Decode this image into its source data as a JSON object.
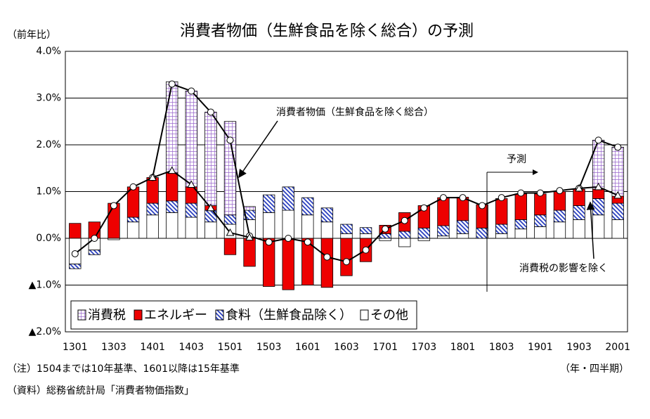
{
  "chart_data": {
    "type": "bar",
    "title": "消費者物価（生鮮食品を除く総合）の予測",
    "y_label": "（前年比）",
    "x_label": "（年・四半期）",
    "notes": [
      "（注）1504までは10年基準、1601以降は15年基準",
      "（資料）総務省統計局「消費者物価指数」"
    ],
    "forecast_label": "予測",
    "categories": [
      "1301",
      null,
      "1303",
      null,
      "1401",
      null,
      "1403",
      null,
      "1501",
      null,
      "1503",
      null,
      "1601",
      null,
      "1603",
      null,
      "1701",
      null,
      "1703",
      null,
      "1801",
      null,
      "1803",
      null,
      "1901",
      null,
      "1903",
      null,
      "2001"
    ],
    "ylim": [
      -2,
      4
    ],
    "yticks": [
      {
        "value": 4,
        "label": "4.0%"
      },
      {
        "value": 3,
        "label": "3.0%"
      },
      {
        "value": 2,
        "label": "2.0%"
      },
      {
        "value": 1,
        "label": "1.0%"
      },
      {
        "value": 0,
        "label": "0.0%"
      },
      {
        "value": -1,
        "label": "▲1.0%"
      },
      {
        "value": -2,
        "label": "▲2.0%"
      }
    ],
    "grid": true,
    "legend": "lower left",
    "series": [
      {
        "name": "消費税",
        "kind": "bar",
        "color": "#9966cc",
        "pattern": "grid",
        "values": [
          0,
          0,
          0,
          0,
          0,
          1.95,
          2.05,
          2.0,
          2.0,
          0.08,
          0,
          0,
          0,
          0,
          0,
          0,
          0,
          0,
          0,
          0,
          0,
          0,
          0,
          0,
          0,
          0,
          0,
          1.05,
          1.05
        ]
      },
      {
        "name": "エネルギー",
        "kind": "bar",
        "color": "#ee0000",
        "pattern": "solid",
        "values": [
          0.32,
          0.35,
          0.75,
          0.65,
          0.55,
          0.6,
          0.35,
          0.1,
          -0.35,
          -0.6,
          -1.03,
          -1.1,
          -1.0,
          -1.05,
          -0.8,
          -0.5,
          0.18,
          0.4,
          0.48,
          0.6,
          0.5,
          0.5,
          0.55,
          0.55,
          0.45,
          0.4,
          0.35,
          0.2,
          0.15
        ]
      },
      {
        "name": "食料（生鮮食品除く）",
        "kind": "bar",
        "color": "#2a3fbf",
        "pattern": "hatch",
        "values": [
          -0.1,
          -0.1,
          0,
          0.1,
          0.25,
          0.25,
          0.3,
          0.25,
          0.2,
          0.2,
          0.38,
          0.5,
          0.37,
          0.3,
          0.2,
          0.13,
          0.1,
          0.15,
          0.22,
          0.22,
          0.28,
          0.22,
          0.2,
          0.2,
          0.25,
          0.25,
          0.3,
          0.35,
          0.35
        ]
      },
      {
        "name": "その他",
        "kind": "bar",
        "color": "#ffffff",
        "pattern": "solid",
        "values": [
          -0.55,
          -0.25,
          -0.03,
          0.35,
          0.5,
          0.55,
          0.45,
          0.35,
          0.3,
          0.4,
          0.55,
          0.6,
          0.5,
          0.35,
          0.1,
          0.1,
          -0.05,
          -0.18,
          -0.05,
          0.05,
          0.1,
          0.0,
          0.1,
          0.2,
          0.25,
          0.35,
          0.4,
          0.5,
          0.4
        ]
      },
      {
        "name": "消費者物価（生鮮食品を除く総合）",
        "kind": "line",
        "color": "#000000",
        "marker": "circle",
        "values": [
          -0.33,
          0.0,
          0.7,
          1.1,
          1.3,
          3.3,
          3.15,
          2.7,
          2.1,
          0.05,
          -0.08,
          0.0,
          -0.08,
          -0.4,
          -0.5,
          -0.25,
          0.2,
          0.38,
          0.65,
          0.87,
          0.87,
          0.7,
          0.87,
          0.97,
          0.97,
          1.02,
          1.07,
          2.1,
          1.95
        ]
      },
      {
        "name": "消費税の影響を除く",
        "kind": "line",
        "color": "#000000",
        "marker": "triangle",
        "values": [
          null,
          null,
          null,
          null,
          1.3,
          1.45,
          1.15,
          0.65,
          0.12,
          0.02,
          null,
          null,
          null,
          null,
          null,
          null,
          null,
          null,
          null,
          null,
          null,
          null,
          null,
          null,
          null,
          null,
          1.07,
          1.1,
          0.92
        ]
      }
    ]
  }
}
